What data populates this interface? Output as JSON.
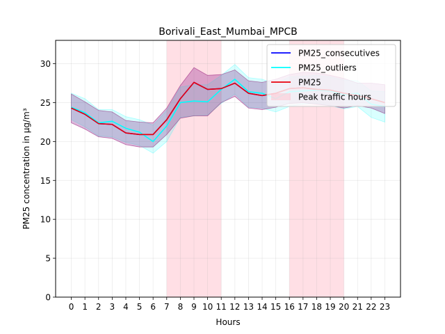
{
  "chart_data": {
    "type": "line",
    "title": "Borivali_East_Mumbai_MPCB",
    "xlabel": "Hours",
    "ylabel": "PM25 concentration in µg/m³",
    "x": [
      0,
      1,
      2,
      3,
      4,
      5,
      6,
      7,
      8,
      9,
      10,
      11,
      12,
      13,
      14,
      15,
      16,
      17,
      18,
      19,
      20,
      21,
      22,
      23
    ],
    "xticks": [
      "0",
      "1",
      "2",
      "3",
      "4",
      "5",
      "6",
      "7",
      "8",
      "9",
      "10",
      "11",
      "12",
      "13",
      "14",
      "15",
      "16",
      "17",
      "18",
      "19",
      "20",
      "21",
      "22",
      "23"
    ],
    "xlim": [
      -1.15,
      24.15
    ],
    "ylim": [
      0,
      33
    ],
    "yticks": [
      0,
      5,
      10,
      15,
      20,
      25,
      30
    ],
    "grid": true,
    "legend_position": "top-right",
    "shaded_regions": [
      {
        "name": "Peak traffic hours",
        "x_start": 7,
        "x_end": 11,
        "color": "#ffc0cb"
      },
      {
        "name": "Peak traffic hours",
        "x_start": 16,
        "x_end": 20,
        "color": "#ffc0cb"
      }
    ],
    "series": [
      {
        "name": "PM25_consecutives",
        "color": "#0000ff",
        "values": [
          24.3,
          23.5,
          22.3,
          22.2,
          21.1,
          20.9,
          20.9,
          22.8,
          25.5,
          27.6,
          26.7,
          26.8,
          27.5,
          26.2,
          25.9,
          26.2,
          26.8,
          26.9,
          26.7,
          26.6,
          26.2,
          25.9,
          25.5,
          25.0
        ],
        "band_lower": [
          22.4,
          21.6,
          20.6,
          20.4,
          19.6,
          19.3,
          19.3,
          20.9,
          23.0,
          23.3,
          23.3,
          25.0,
          25.8,
          24.3,
          24.1,
          24.4,
          24.9,
          25.0,
          24.8,
          24.6,
          24.3,
          24.6,
          24.3,
          23.6
        ],
        "band_upper": [
          26.1,
          25.1,
          24.0,
          23.8,
          22.7,
          22.5,
          22.4,
          24.3,
          27.2,
          29.5,
          28.5,
          28.6,
          29.2,
          27.8,
          27.6,
          28.0,
          28.6,
          28.9,
          28.8,
          28.5,
          28.1,
          27.5,
          27.5,
          27.3
        ],
        "band_color": "#0000ff"
      },
      {
        "name": "PM25_outliers",
        "color": "#00ffff",
        "values": [
          24.4,
          23.7,
          22.4,
          22.6,
          21.7,
          21.2,
          20.0,
          22.0,
          25.0,
          25.2,
          25.1,
          26.7,
          28.0,
          26.4,
          26.2,
          25.5,
          26.4,
          26.5,
          26.6,
          26.5,
          26.0,
          26.2,
          24.8,
          24.5
        ],
        "band_lower": [
          22.8,
          21.9,
          20.7,
          20.6,
          19.9,
          19.5,
          18.5,
          20.0,
          23.1,
          23.3,
          23.4,
          24.9,
          26.1,
          24.4,
          24.3,
          23.8,
          24.5,
          24.8,
          24.9,
          24.6,
          24.2,
          24.5,
          23.1,
          22.5
        ],
        "band_upper": [
          26.2,
          25.5,
          24.1,
          24.1,
          23.2,
          22.8,
          22.1,
          24.0,
          27.0,
          27.3,
          27.3,
          28.5,
          29.9,
          28.2,
          28.0,
          27.4,
          28.3,
          28.4,
          28.5,
          28.3,
          27.9,
          27.8,
          26.5,
          26.4
        ],
        "band_color": "#00ffff"
      },
      {
        "name": "PM25",
        "color": "#e8000b",
        "values": [
          24.3,
          23.5,
          22.3,
          22.2,
          21.1,
          20.9,
          20.9,
          22.8,
          25.5,
          27.6,
          26.7,
          26.8,
          27.5,
          26.2,
          25.9,
          26.2,
          26.8,
          26.9,
          26.7,
          26.6,
          26.2,
          25.9,
          25.5,
          25.0
        ],
        "band_lower": [
          22.4,
          21.6,
          20.6,
          20.4,
          19.6,
          19.3,
          19.3,
          20.9,
          23.0,
          23.3,
          23.3,
          25.0,
          25.8,
          24.3,
          24.1,
          24.4,
          24.9,
          25.0,
          24.8,
          24.6,
          24.3,
          24.6,
          24.3,
          23.6
        ],
        "band_upper": [
          26.1,
          25.1,
          24.0,
          23.8,
          22.7,
          22.5,
          22.4,
          24.3,
          27.2,
          29.5,
          28.5,
          28.6,
          29.2,
          27.8,
          27.6,
          28.0,
          28.6,
          28.9,
          28.8,
          28.5,
          28.1,
          27.5,
          27.5,
          27.3
        ],
        "band_color": "#e8000b"
      }
    ],
    "legend": [
      {
        "label": "PM25_consecutives",
        "color": "#0000ff",
        "kind": "line"
      },
      {
        "label": "PM25_outliers",
        "color": "#00ffff",
        "kind": "line"
      },
      {
        "label": "PM25",
        "color": "#e8000b",
        "kind": "line"
      },
      {
        "label": "Peak traffic hours",
        "color": "#ffc0cb",
        "kind": "patch"
      }
    ]
  }
}
